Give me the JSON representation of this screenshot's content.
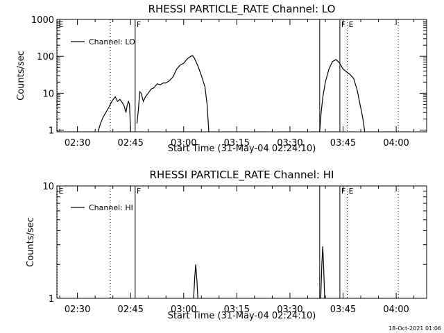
{
  "chart_data": [
    {
      "type": "line",
      "title": "RHESSI PARTICLE_RATE Channel: LO",
      "xlabel": "Start Time (31-May-04 02:24:10)",
      "ylabel": "Counts/sec",
      "y_scale": "log",
      "ylim": [
        0.9,
        1000
      ],
      "xlim_minutes": [
        144.2,
        248.6
      ],
      "x_ticks": [
        {
          "label": "02:30",
          "minutes": 150
        },
        {
          "label": "02:45",
          "minutes": 165
        },
        {
          "label": "03:00",
          "minutes": 180
        },
        {
          "label": "03:15",
          "minutes": 195
        },
        {
          "label": "03:30",
          "minutes": 210
        },
        {
          "label": "03:45",
          "minutes": 225
        },
        {
          "label": "04:00",
          "minutes": 240
        }
      ],
      "y_ticks": [
        {
          "label": "1",
          "value": 1
        },
        {
          "label": "10",
          "value": 10
        },
        {
          "label": "100",
          "value": 100
        },
        {
          "label": "1000",
          "value": 1000
        }
      ],
      "grid": false,
      "legend": {
        "position": "top-left",
        "entries": [
          "Channel: LO"
        ]
      },
      "markers": [
        {
          "label": "E",
          "minutes": 144.3,
          "style": "dotted"
        },
        {
          "label": "",
          "minutes": 159.3,
          "style": "dotted"
        },
        {
          "label": "F",
          "minutes": 166.3,
          "style": "solid"
        },
        {
          "label": "",
          "minutes": 218.4,
          "style": "solid"
        },
        {
          "label": "F",
          "minutes": 224.1,
          "style": "solid"
        },
        {
          "label": "E",
          "minutes": 226.2,
          "style": "dotted"
        },
        {
          "label": "",
          "minutes": 240.6,
          "style": "dotted"
        }
      ],
      "series": [
        {
          "name": "Channel: LO",
          "segments": [
            [
              [
                155.8,
                0.9
              ],
              [
                156.5,
                1.5
              ],
              [
                157.2,
                2.2
              ],
              [
                158.0,
                3.0
              ],
              [
                158.8,
                4.0
              ],
              [
                159.5,
                5.5
              ],
              [
                160.2,
                7.0
              ],
              [
                160.7,
                8.0
              ],
              [
                161.3,
                6.0
              ],
              [
                162.0,
                6.8
              ],
              [
                162.7,
                5.5
              ],
              [
                163.2,
                4.5
              ],
              [
                163.7,
                3.0
              ],
              [
                164.0,
                4.5
              ],
              [
                164.4,
                6.0
              ],
              [
                164.7,
                5.0
              ],
              [
                165.0,
                0.9
              ]
            ],
            [
              [
                166.8,
                1.5
              ],
              [
                167.2,
                3.5
              ],
              [
                167.6,
                11.0
              ],
              [
                168.0,
                10.0
              ],
              [
                168.6,
                6.0
              ],
              [
                169.2,
                8.0
              ],
              [
                170.0,
                10.0
              ],
              [
                170.8,
                13.0
              ],
              [
                171.6,
                14.0
              ],
              [
                172.5,
                18.0
              ],
              [
                173.4,
                17.0
              ],
              [
                174.2,
                19.0
              ],
              [
                175.0,
                19.0
              ],
              [
                176.0,
                22.0
              ],
              [
                177.0,
                28.0
              ],
              [
                178.0,
                45.0
              ],
              [
                179.0,
                58.0
              ],
              [
                180.0,
                65.0
              ],
              [
                181.0,
                85.0
              ],
              [
                182.0,
                100.0
              ],
              [
                182.5,
                105.0
              ],
              [
                183.0,
                90.0
              ],
              [
                184.0,
                55.0
              ],
              [
                185.0,
                30.0
              ],
              [
                186.0,
                15.0
              ],
              [
                186.6,
                5.0
              ],
              [
                187.1,
                0.9
              ]
            ],
            [
              [
                218.4,
                0.9
              ],
              [
                218.8,
                3.0
              ],
              [
                219.3,
                8.0
              ],
              [
                220.0,
                20.0
              ],
              [
                221.0,
                45.0
              ],
              [
                222.0,
                72.0
              ],
              [
                223.0,
                82.0
              ],
              [
                224.0,
                66.0
              ],
              [
                225.0,
                45.0
              ],
              [
                226.0,
                38.0
              ],
              [
                227.0,
                32.0
              ],
              [
                228.0,
                25.0
              ],
              [
                229.0,
                12.0
              ],
              [
                230.0,
                4.0
              ],
              [
                230.7,
                1.8
              ],
              [
                231.1,
                0.9
              ]
            ]
          ]
        }
      ]
    },
    {
      "type": "line",
      "title": "RHESSI PARTICLE_RATE Channel: HI",
      "xlabel": "Start Time (31-May-04 02:24:10)",
      "ylabel": "Counts/sec",
      "y_scale": "log",
      "ylim": [
        1,
        10
      ],
      "xlim_minutes": [
        144.2,
        248.6
      ],
      "x_ticks": [
        {
          "label": "02:30",
          "minutes": 150
        },
        {
          "label": "02:45",
          "minutes": 165
        },
        {
          "label": "03:00",
          "minutes": 180
        },
        {
          "label": "03:15",
          "minutes": 195
        },
        {
          "label": "03:30",
          "minutes": 210
        },
        {
          "label": "03:45",
          "minutes": 225
        },
        {
          "label": "04:00",
          "minutes": 240
        }
      ],
      "y_ticks": [
        {
          "label": "1",
          "value": 1
        },
        {
          "label": "10",
          "value": 10
        }
      ],
      "grid": false,
      "legend": {
        "position": "top-left",
        "entries": [
          "Channel: HI"
        ]
      },
      "markers": [
        {
          "label": "E",
          "minutes": 144.3,
          "style": "dotted"
        },
        {
          "label": "",
          "minutes": 159.3,
          "style": "dotted"
        },
        {
          "label": "F",
          "minutes": 166.3,
          "style": "solid"
        },
        {
          "label": "",
          "minutes": 218.4,
          "style": "solid"
        },
        {
          "label": "F",
          "minutes": 224.1,
          "style": "solid"
        },
        {
          "label": "E",
          "minutes": 226.2,
          "style": "dotted"
        },
        {
          "label": "",
          "minutes": 240.6,
          "style": "dotted"
        }
      ],
      "series": [
        {
          "name": "Channel: HI",
          "segments": [
            [
              [
                182.8,
                1.0
              ],
              [
                183.1,
                1.5
              ],
              [
                183.4,
                2.0
              ],
              [
                183.7,
                1.5
              ],
              [
                184.0,
                1.0
              ]
            ],
            [
              [
                218.7,
                1.0
              ],
              [
                219.0,
                2.0
              ],
              [
                219.25,
                2.9
              ],
              [
                219.5,
                2.0
              ],
              [
                219.8,
                1.0
              ]
            ]
          ]
        }
      ]
    }
  ],
  "footer": {
    "timestamp": "18-Oct-2021 01:06"
  }
}
